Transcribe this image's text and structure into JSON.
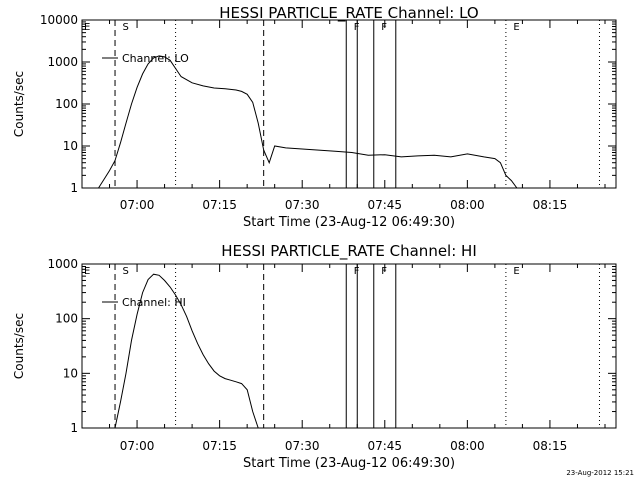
{
  "chart_data": [
    {
      "type": "line",
      "title": "HESSI PARTICLE_RATE Channel: LO",
      "xlabel": "Start Time (23-Aug-12 06:49:30)",
      "ylabel": "Counts/sec",
      "xticks": [
        "07:00",
        "07:15",
        "07:30",
        "07:45",
        "08:00",
        "08:15"
      ],
      "yticks": [
        "1",
        "10",
        "100",
        "1000",
        "10000"
      ],
      "yscale": "log",
      "ylim": [
        1,
        10000
      ],
      "xlim": [
        "06:50",
        "08:27"
      ],
      "grid": false,
      "legend": {
        "placement": "top-left",
        "label": "Channel: LO"
      },
      "series": [
        {
          "name": "Channel: LO",
          "x": [
            "06:53",
            "06:54",
            "06:55",
            "06:56",
            "06:57",
            "06:58",
            "06:59",
            "07:00",
            "07:01",
            "07:02",
            "07:03",
            "07:04",
            "07:05",
            "07:06",
            "07:07",
            "07:08",
            "07:10",
            "07:12",
            "07:14",
            "07:16",
            "07:18",
            "07:19",
            "07:20",
            "07:21",
            "07:22",
            "07:23",
            "07:24",
            "07:25",
            "07:27",
            "07:30",
            "07:33",
            "07:36",
            "07:39",
            "07:42",
            "07:45",
            "07:48",
            "07:51",
            "07:54",
            "07:57",
            "08:00",
            "08:03",
            "08:05",
            "08:06",
            "08:07",
            "08:08",
            "08:09",
            "08:10",
            "08:11",
            "08:12"
          ],
          "values": [
            1,
            1.6,
            2.6,
            4.5,
            12,
            35,
            100,
            250,
            520,
            900,
            1250,
            1400,
            1320,
            1100,
            700,
            450,
            320,
            270,
            240,
            230,
            215,
            200,
            170,
            110,
            35,
            8,
            4,
            10,
            9,
            8.5,
            8,
            7.5,
            7,
            6,
            6.2,
            5.5,
            5.8,
            6,
            5.5,
            6.5,
            5.5,
            5,
            4,
            2,
            1.5,
            1,
            1,
            1,
            1
          ]
        }
      ],
      "markers": {
        "dashed": [
          "06:56",
          "07:23"
        ],
        "dotted": [
          "07:07",
          "08:07",
          "08:24"
        ],
        "solid": [
          "07:38",
          "07:40",
          "07:43",
          "07:47"
        ],
        "labels": [
          {
            "text": "E",
            "x": "06:50"
          },
          {
            "text": "S",
            "x": "06:57"
          },
          {
            "text": "F",
            "x": "07:39"
          },
          {
            "text": "F",
            "x": "07:44"
          },
          {
            "text": "E",
            "x": "08:08"
          }
        ]
      }
    },
    {
      "type": "line",
      "title": "HESSI PARTICLE_RATE Channel: HI",
      "xlabel": "Start Time (23-Aug-12 06:49:30)",
      "ylabel": "Counts/sec",
      "xticks": [
        "07:00",
        "07:15",
        "07:30",
        "07:45",
        "08:00",
        "08:15"
      ],
      "yticks": [
        "1",
        "10",
        "100",
        "1000"
      ],
      "yscale": "log",
      "ylim": [
        1,
        1000
      ],
      "xlim": [
        "06:50",
        "08:27"
      ],
      "grid": false,
      "legend": {
        "placement": "top-left",
        "label": "Channel: HI"
      },
      "series": [
        {
          "name": "Channel: HI",
          "x": [
            "06:56",
            "06:57",
            "06:58",
            "06:59",
            "07:00",
            "07:01",
            "07:02",
            "07:03",
            "07:04",
            "07:05",
            "07:06",
            "07:07",
            "07:08",
            "07:09",
            "07:10",
            "07:11",
            "07:12",
            "07:13",
            "07:14",
            "07:15",
            "07:16",
            "07:17",
            "07:18",
            "07:19",
            "07:20",
            "07:21",
            "07:22"
          ],
          "values": [
            1,
            3,
            10,
            40,
            120,
            300,
            520,
            650,
            620,
            500,
            380,
            270,
            180,
            110,
            60,
            35,
            22,
            15,
            11,
            9,
            8,
            7.5,
            7,
            6.5,
            5,
            2,
            1
          ]
        }
      ],
      "markers": {
        "dashed": [
          "06:56",
          "07:23"
        ],
        "dotted": [
          "07:07",
          "08:07",
          "08:24"
        ],
        "solid": [
          "07:38",
          "07:40",
          "07:43",
          "07:47"
        ],
        "labels": [
          {
            "text": "E",
            "x": "06:50"
          },
          {
            "text": "S",
            "x": "06:57"
          },
          {
            "text": "F",
            "x": "07:39"
          },
          {
            "text": "F",
            "x": "07:44"
          },
          {
            "text": "E",
            "x": "08:08"
          }
        ]
      }
    }
  ],
  "footer": "23-Aug-2012 15:21"
}
